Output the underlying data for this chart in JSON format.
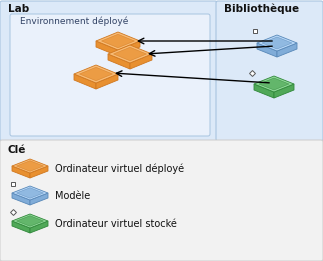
{
  "title_lab": "Lab",
  "title_biblio": "Bibliothèque",
  "title_cle": "Clé",
  "env_label": "Environnement déployé",
  "legend_items": [
    {
      "label": "Ordinateur virtuel déployé"
    },
    {
      "label": "Modèle"
    },
    {
      "label": "Ordinateur virtuel stocké"
    }
  ],
  "bg_color": "#ffffff",
  "lab_box_color": "#dce9f8",
  "biblio_box_color": "#dce9f8",
  "env_box_color": "#eaf1fb",
  "cle_box_color": "#f2f2f2",
  "lab_edge": "#a8c4e0",
  "biblio_edge": "#a8c4e0",
  "env_edge": "#a8c4e0",
  "cle_edge": "#cccccc",
  "orange_fill": "#f7bb75",
  "orange_side": "#e89030",
  "orange_edge": "#d07820",
  "blue_fill": "#b8d8f8",
  "blue_side": "#80acd8",
  "blue_edge": "#5888b8",
  "green_fill": "#90d898",
  "green_side": "#50a858",
  "green_edge": "#30883a"
}
